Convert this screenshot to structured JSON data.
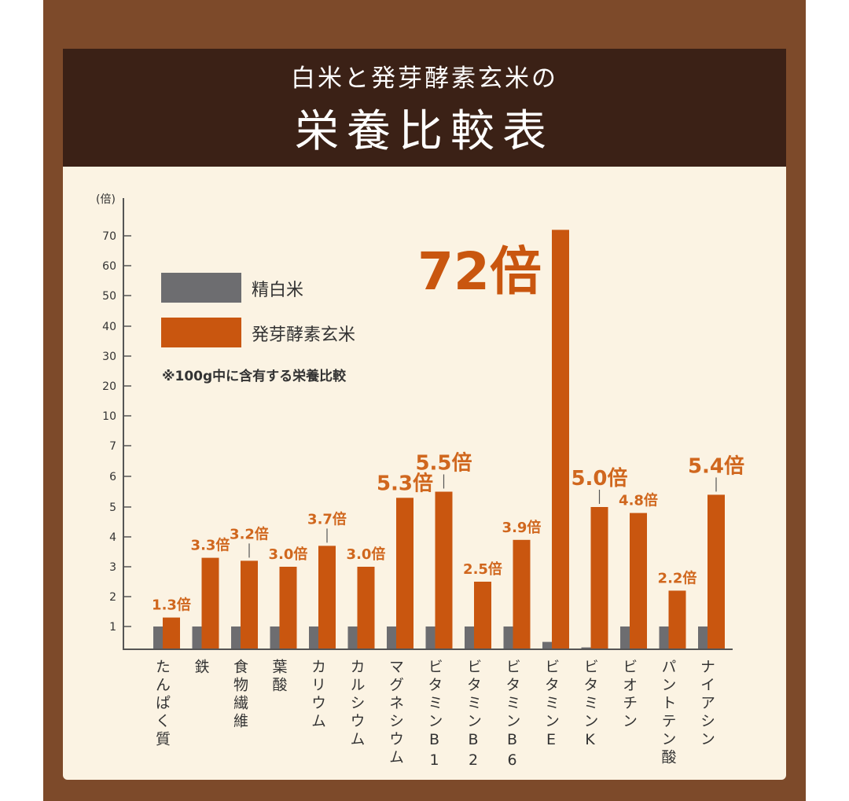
{
  "chart_data": {
    "type": "bar",
    "title": "栄養比較表",
    "subtitle": "白米と発芽酵素玄米の",
    "ylabel": "(倍)",
    "yticks": [
      1,
      2,
      3,
      4,
      5,
      6,
      7,
      10,
      20,
      30,
      40,
      50,
      60,
      70
    ],
    "yscale": "piecewise (1–7 linear, then 10–70 by 10)",
    "note": "※100g中に含有する栄養比較",
    "categories": [
      "たんぱく質",
      "鉄",
      "食物繊維",
      "葉酸",
      "カリウム",
      "カルシウム",
      "マグネシウム",
      "ビタミンB1",
      "ビタミンB2",
      "ビタミンB6",
      "ビタミンE",
      "ビタミンK",
      "ビオチン",
      "パントテン酸",
      "ナイアシン"
    ],
    "series": [
      {
        "name": "精白米",
        "color": "#6d6d70",
        "values": [
          1,
          1,
          1,
          1,
          1,
          1,
          1,
          1,
          1,
          1,
          0.3,
          0.05,
          1,
          1,
          1
        ]
      },
      {
        "name": "発芽酵素玄米",
        "color": "#c9560f",
        "values": [
          1.3,
          3.3,
          3.2,
          3.0,
          3.7,
          3.0,
          5.3,
          5.5,
          2.5,
          3.9,
          72,
          5.0,
          4.8,
          2.2,
          5.4
        ]
      }
    ],
    "data_labels": [
      "1.3倍",
      "3.3倍",
      "3.2倍",
      "3.0倍",
      "3.7倍",
      "3.0倍",
      "5.3倍",
      "5.5倍",
      "2.5倍",
      "3.9倍",
      "72倍",
      "5.0倍",
      "4.8倍",
      "2.2倍",
      "5.4倍"
    ],
    "legend": "top-left",
    "grid": false
  }
}
